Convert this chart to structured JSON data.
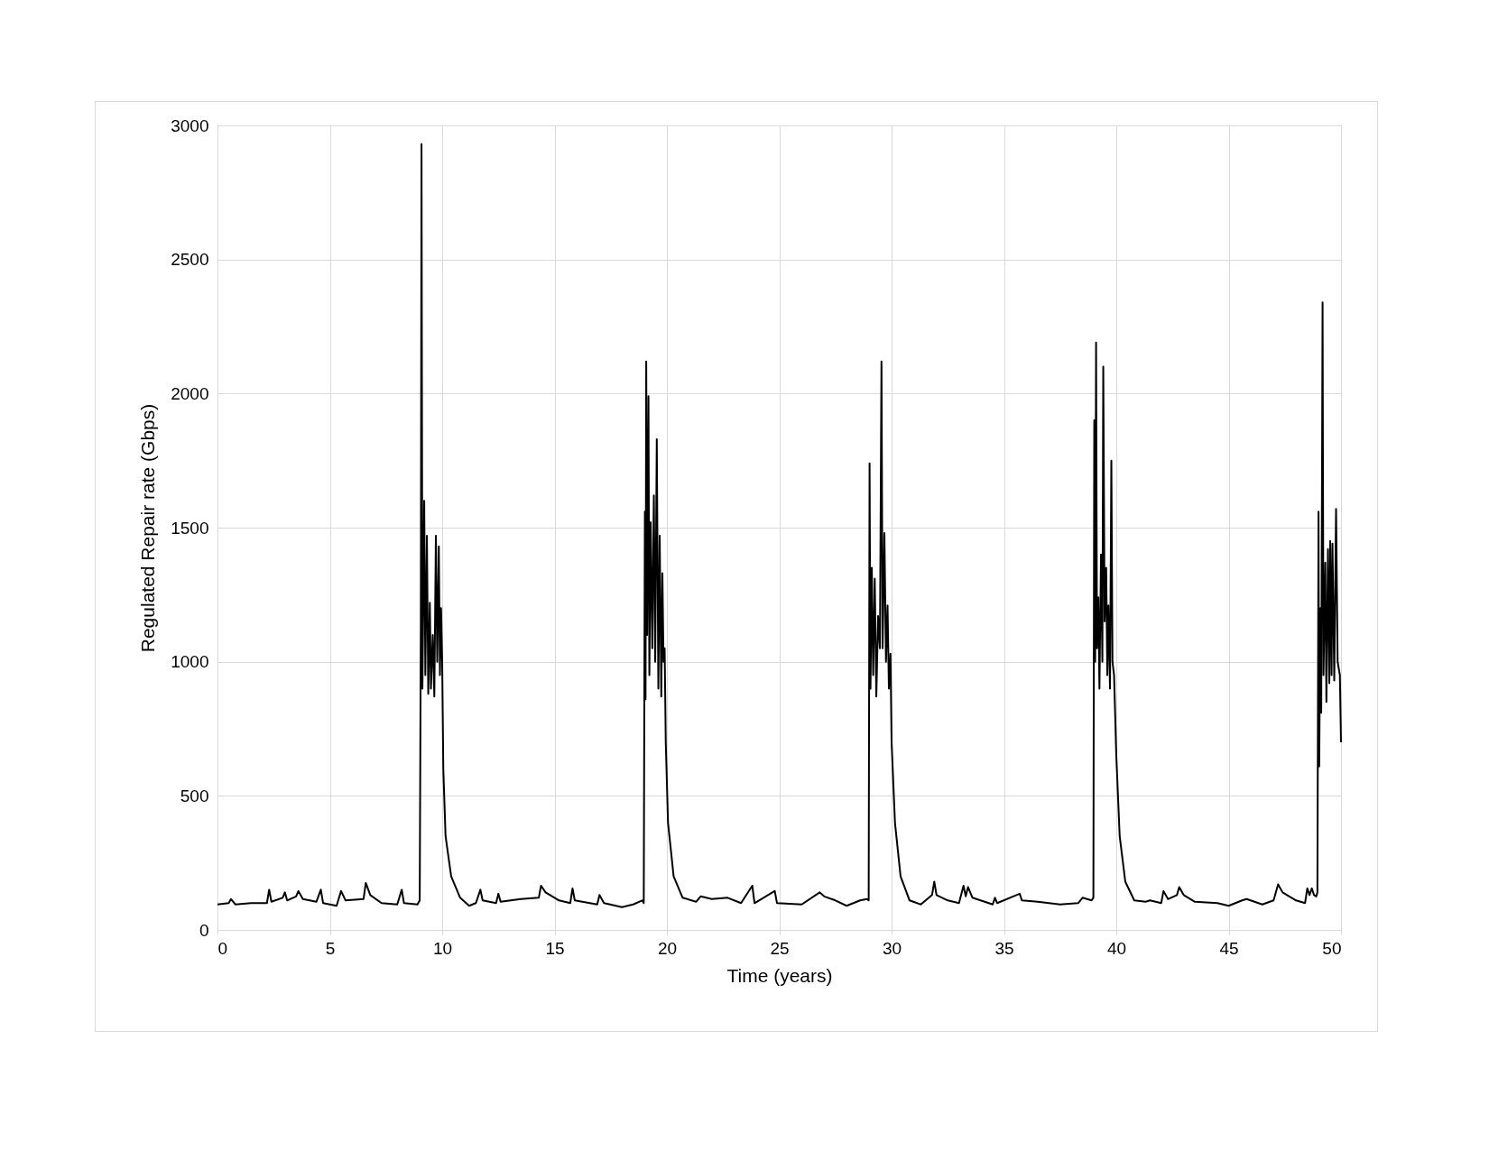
{
  "chart_data": {
    "type": "line",
    "xlabel": "Time (years)",
    "ylabel": "Regulated Repair rate (Gbps)",
    "xlim": [
      0,
      50
    ],
    "xticks": [
      0,
      5,
      10,
      15,
      20,
      25,
      30,
      35,
      40,
      45,
      50
    ],
    "ylim": [
      0,
      3000
    ],
    "yticks": [
      0,
      500,
      1000,
      1500,
      2000,
      2500,
      3000
    ],
    "grid": true,
    "marker": "none",
    "line_style": "solid",
    "x": [
      0,
      0.5,
      0.6,
      0.8,
      1.5,
      2.2,
      2.3,
      2.4,
      2.9,
      3.0,
      3.1,
      3.5,
      3.6,
      3.8,
      4.4,
      4.6,
      4.7,
      5.3,
      5.5,
      5.7,
      6.5,
      6.6,
      6.8,
      7.3,
      8.0,
      8.2,
      8.3,
      8.9,
      9.0,
      9.05,
      9.08,
      9.12,
      9.2,
      9.25,
      9.32,
      9.38,
      9.45,
      9.5,
      9.58,
      9.65,
      9.72,
      9.78,
      9.85,
      9.9,
      9.95,
      10.0,
      10.05,
      10.15,
      10.4,
      10.8,
      11.2,
      11.5,
      11.7,
      11.8,
      12.4,
      12.5,
      12.6,
      13.5,
      14.3,
      14.4,
      14.6,
      15.2,
      15.7,
      15.8,
      15.9,
      16.9,
      17.0,
      17.2,
      18.0,
      18.5,
      18.9,
      18.97,
      19.02,
      19.05,
      19.08,
      19.12,
      19.18,
      19.22,
      19.28,
      19.35,
      19.42,
      19.48,
      19.55,
      19.62,
      19.68,
      19.75,
      19.8,
      19.85,
      19.9,
      19.95,
      20.05,
      20.3,
      20.7,
      21.3,
      21.5,
      22.0,
      22.7,
      23.3,
      23.8,
      23.9,
      24.8,
      24.9,
      26.0,
      26.8,
      27.0,
      27.5,
      28.0,
      28.6,
      28.9,
      28.98,
      29.02,
      29.06,
      29.12,
      29.18,
      29.25,
      29.32,
      29.4,
      29.48,
      29.55,
      29.6,
      29.68,
      29.75,
      29.82,
      29.88,
      29.95,
      30.0,
      30.15,
      30.4,
      30.8,
      31.3,
      31.8,
      31.9,
      32.0,
      32.5,
      33.0,
      33.2,
      33.3,
      33.4,
      33.6,
      34.5,
      34.6,
      34.7,
      35.7,
      35.8,
      36.5,
      37.5,
      38.3,
      38.5,
      38.9,
      38.98,
      39.02,
      39.06,
      39.1,
      39.14,
      39.2,
      39.25,
      39.32,
      39.38,
      39.42,
      39.48,
      39.55,
      39.6,
      39.65,
      39.72,
      39.78,
      39.83,
      39.9,
      40.0,
      40.15,
      40.4,
      40.8,
      41.3,
      41.5,
      42.0,
      42.1,
      42.3,
      42.7,
      42.8,
      43.0,
      43.5,
      44.5,
      45.0,
      45.6,
      45.8,
      46.5,
      47.0,
      47.2,
      47.4,
      48.0,
      48.4,
      48.5,
      48.6,
      48.7,
      48.8,
      48.9,
      48.95,
      49.0,
      49.03,
      49.08,
      49.12,
      49.18,
      49.22,
      49.3,
      49.35,
      49.42,
      49.48,
      49.52,
      49.58,
      49.62,
      49.7,
      49.78,
      49.85,
      49.95,
      50.0
    ],
    "series": [
      {
        "color": "#000000",
        "values": [
          95,
          100,
          115,
          95,
          100,
          100,
          150,
          105,
          120,
          140,
          110,
          125,
          145,
          115,
          105,
          150,
          100,
          90,
          145,
          110,
          115,
          175,
          130,
          100,
          95,
          150,
          100,
          95,
          110,
          1150,
          2930,
          900,
          1600,
          950,
          1470,
          880,
          1220,
          900,
          1100,
          870,
          1470,
          1000,
          1430,
          950,
          1200,
          1000,
          600,
          350,
          200,
          120,
          90,
          100,
          150,
          110,
          100,
          135,
          105,
          115,
          120,
          165,
          140,
          110,
          100,
          155,
          110,
          95,
          130,
          100,
          85,
          95,
          110,
          100,
          1560,
          860,
          2120,
          1100,
          1990,
          950,
          1520,
          1050,
          1620,
          1000,
          1830,
          900,
          1470,
          870,
          1330,
          1000,
          1050,
          700,
          400,
          200,
          120,
          105,
          125,
          115,
          120,
          100,
          165,
          100,
          145,
          100,
          95,
          140,
          125,
          110,
          90,
          110,
          115,
          110,
          1740,
          900,
          1350,
          950,
          1310,
          870,
          1170,
          1050,
          2120,
          1050,
          1480,
          1000,
          1210,
          900,
          1030,
          700,
          400,
          200,
          110,
          95,
          130,
          180,
          130,
          110,
          100,
          165,
          125,
          160,
          120,
          95,
          120,
          100,
          135,
          110,
          105,
          95,
          100,
          120,
          110,
          120,
          1900,
          1000,
          2190,
          1050,
          1240,
          900,
          1400,
          1000,
          2100,
          1150,
          1350,
          950,
          1210,
          900,
          1750,
          1000,
          950,
          650,
          350,
          180,
          110,
          105,
          110,
          100,
          145,
          115,
          130,
          160,
          130,
          105,
          100,
          90,
          110,
          115,
          95,
          110,
          170,
          140,
          110,
          100,
          155,
          130,
          155,
          130,
          125,
          140,
          1560,
          610,
          1200,
          810,
          2340,
          950,
          1370,
          850,
          1420,
          920,
          1450,
          950,
          1440,
          930,
          1570,
          1000,
          950,
          700
        ]
      }
    ]
  }
}
